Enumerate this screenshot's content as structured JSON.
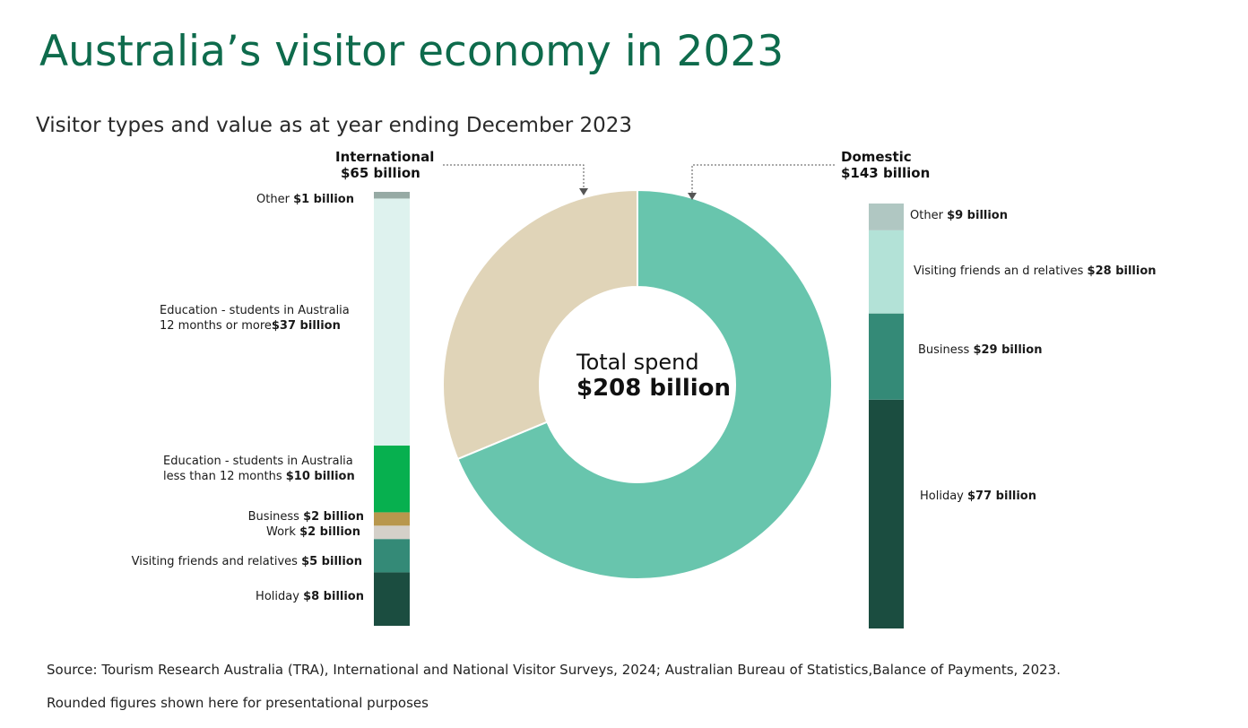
{
  "title": "Australia’s visitor economy in 2023",
  "subtitle": "Visitor types and value as at year ending December 2023",
  "footer": {
    "source": "Source: Tourism Research Australia (TRA), International and National Visitor Surveys, 2024; Australian Bureau of Statistics,Balance of Payments, 2023.",
    "note": "Rounded figures shown here for presentational purposes"
  },
  "chart_data": [
    {
      "type": "pie",
      "variant": "donut",
      "center_text": [
        "Total spend",
        "$208 billion"
      ],
      "total": 208,
      "unit": "$ billion",
      "slices": [
        {
          "label": "International",
          "value_label": "$65 billion",
          "value": 65,
          "color": "#e0d4b8"
        },
        {
          "label": "Domestic",
          "value_label": "$143 billion",
          "value": 143,
          "color": "#68c5ad"
        }
      ]
    },
    {
      "type": "bar",
      "variant": "stacked-single",
      "group": "International",
      "unit": "$ billion",
      "scale_total": 65,
      "segments": [
        {
          "name": "Holiday",
          "value_label": "$8 billion",
          "value": 8,
          "color": "#1b4d40"
        },
        {
          "name": "Visiting  friends and relatives",
          "value_label": "$5 billion",
          "value": 5,
          "color": "#348a77"
        },
        {
          "name": "Work",
          "value_label": "$2 billion",
          "value": 2,
          "color": "#d4d0c9"
        },
        {
          "name": "Business",
          "value_label": "$2 billion",
          "value": 2,
          "color": "#b8974d"
        },
        {
          "name": "Education  - students in Australia\nless than 12 months",
          "value_label": "$10 billion",
          "value": 10,
          "color": "#07b04f"
        },
        {
          "name": "Education  - students in Australia\n12 months or more",
          "value_label": "$37 billion",
          "value": 37,
          "color": "#def2ee"
        },
        {
          "name": "Other",
          "value_label": "$1 billion",
          "value": 1,
          "color": "#96aaa4"
        }
      ]
    },
    {
      "type": "bar",
      "variant": "stacked-single",
      "group": "Domestic",
      "unit": "$ billion",
      "scale_total": 143,
      "segments": [
        {
          "name": "Holiday",
          "value_label": "$77 billion",
          "value": 77,
          "color": "#1b4d40"
        },
        {
          "name": "Business",
          "value_label": "$29 billion",
          "value": 29,
          "color": "#348a77"
        },
        {
          "name": "Visiting friends an  d relatives",
          "value_label": "$28 billion",
          "value": 28,
          "color": "#b3e2d7"
        },
        {
          "name": "Other",
          "value_label": "$9 billion",
          "value": 9,
          "color": "#b0c7c2"
        }
      ]
    }
  ]
}
